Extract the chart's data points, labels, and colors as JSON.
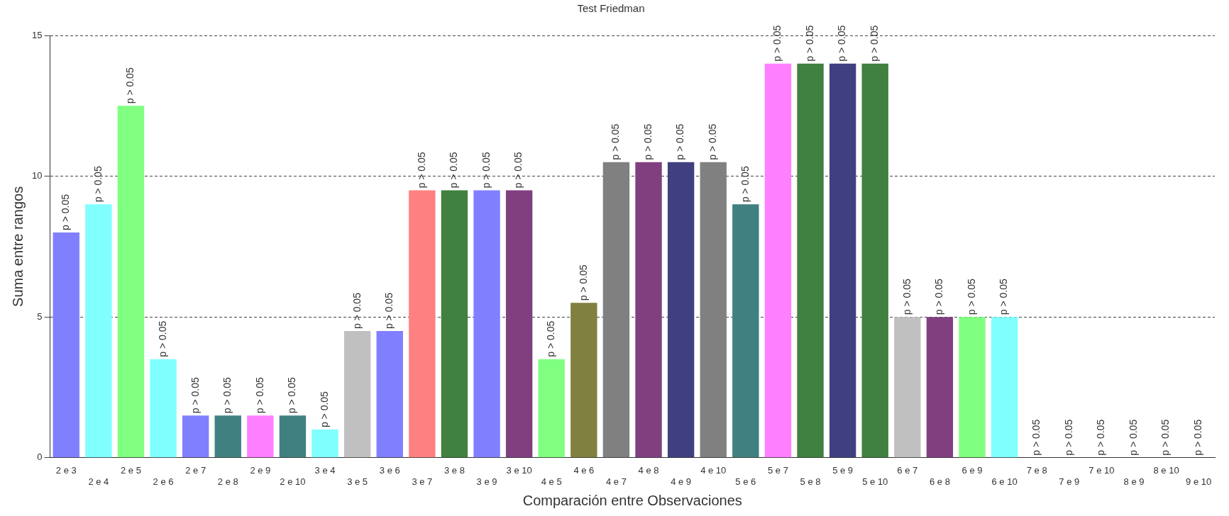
{
  "chart_data": {
    "type": "bar",
    "title": "Test Friedman",
    "xlabel": "Comparación entre Observaciones",
    "ylabel": "Suma entre rangos",
    "categories": [
      "2 e 3",
      "2 e 4",
      "2 e 5",
      "2 e 6",
      "2 e 7",
      "2 e 8",
      "2 e 9",
      "2 e 10",
      "3 e 4",
      "3 e 5",
      "3 e 6",
      "3 e 7",
      "3 e 8",
      "3 e 9",
      "3 e 10",
      "4 e 5",
      "4 e 6",
      "4 e 7",
      "4 e 8",
      "4 e 9",
      "4 e 10",
      "5 e 6",
      "5 e 7",
      "5 e 8",
      "5 e 9",
      "5 e 10",
      "6 e 7",
      "6 e 8",
      "6 e 9",
      "6 e 10",
      "7 e 8",
      "7 e 9",
      "7 e 10",
      "8 e 9",
      "8 e 10",
      "9 e 10"
    ],
    "values": [
      8,
      9,
      12.5,
      3.5,
      1.5,
      1.5,
      1.5,
      1.5,
      1,
      4.5,
      4.5,
      9.5,
      9.5,
      9.5,
      9.5,
      3.5,
      5.5,
      10.5,
      10.5,
      10.5,
      10.5,
      9,
      14,
      14,
      14,
      14,
      5,
      5,
      5,
      5,
      0,
      0,
      0,
      0,
      0,
      0
    ],
    "colors": [
      "#8080ff",
      "#80ffff",
      "#80ff80",
      "#80ffff",
      "#8080ff",
      "#408080",
      "#ff80ff",
      "#408080",
      "#80ffff",
      "#c0c0c0",
      "#8080ff",
      "#ff8080",
      "#408040",
      "#8080ff",
      "#804080",
      "#80ff80",
      "#808040",
      "#808080",
      "#804080",
      "#404080",
      "#808080",
      "#408080",
      "#ff80ff",
      "#408040",
      "#404080",
      "#408040",
      "#c0c0c0",
      "#804080",
      "#80ff80",
      "#80ffff",
      "#8080ff",
      "#80ffff",
      "#80ff80",
      "#408080",
      "#ff80ff",
      "#408080"
    ],
    "value_labels": [
      "p > 0.05",
      "p > 0.05",
      "p > 0.05",
      "p > 0.05",
      "p > 0.05",
      "p > 0.05",
      "p > 0.05",
      "p > 0.05",
      "p > 0.05",
      "p > 0.05",
      "p > 0.05",
      "p > 0.05",
      "p > 0.05",
      "p > 0.05",
      "p > 0.05",
      "p > 0.05",
      "p > 0.05",
      "p > 0.05",
      "p > 0.05",
      "p > 0.05",
      "p > 0.05",
      "p > 0.05",
      "p > 0.05",
      "p > 0.05",
      "p > 0.05",
      "p > 0.05",
      "p > 0.05",
      "p > 0.05",
      "p > 0.05",
      "p > 0.05",
      "p > 0.05",
      "p > 0.05",
      "p > 0.05",
      "p > 0.05",
      "p > 0.05",
      "p > 0.05"
    ],
    "ylim": [
      0,
      15
    ],
    "yticks": [
      0,
      5,
      10,
      15
    ],
    "grid": "y",
    "legend": false
  }
}
